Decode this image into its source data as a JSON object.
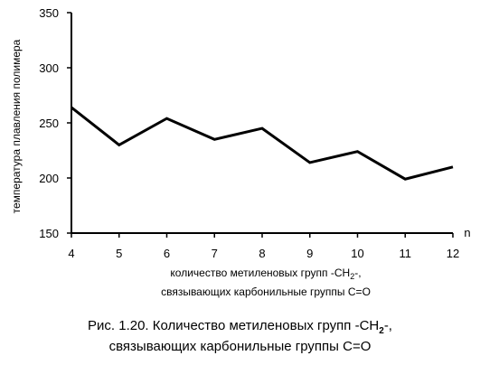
{
  "chart_data": {
    "type": "line",
    "x": [
      4,
      5,
      6,
      7,
      8,
      9,
      10,
      11,
      12
    ],
    "series": [
      {
        "values": [
          264,
          230,
          254,
          235,
          245,
          214,
          224,
          199,
          210
        ]
      }
    ],
    "ylabel": "температура плавления полимера",
    "xlabel_line1_pre": "количество метиленовых групп -CH",
    "xlabel_line1_sub": "2",
    "xlabel_line1_post": "-,",
    "xlabel_line2": "связывающих карбонильные группы C=O",
    "x_unit": "n",
    "x_ticks": [
      "4",
      "5",
      "6",
      "7",
      "8",
      "9",
      "10",
      "11",
      "12"
    ],
    "y_ticks": [
      "150",
      "200",
      "250",
      "300",
      "350"
    ],
    "ylim": [
      150,
      350
    ],
    "xlim": [
      4,
      12
    ],
    "grid": false,
    "line_color": "#000000"
  },
  "caption": {
    "line1_pre": "Рис. 1.20. Количество метиленовых групп -CH",
    "line1_sub": "2",
    "line1_post": "-,",
    "line2": "связывающих карбонильные группы C=O"
  }
}
